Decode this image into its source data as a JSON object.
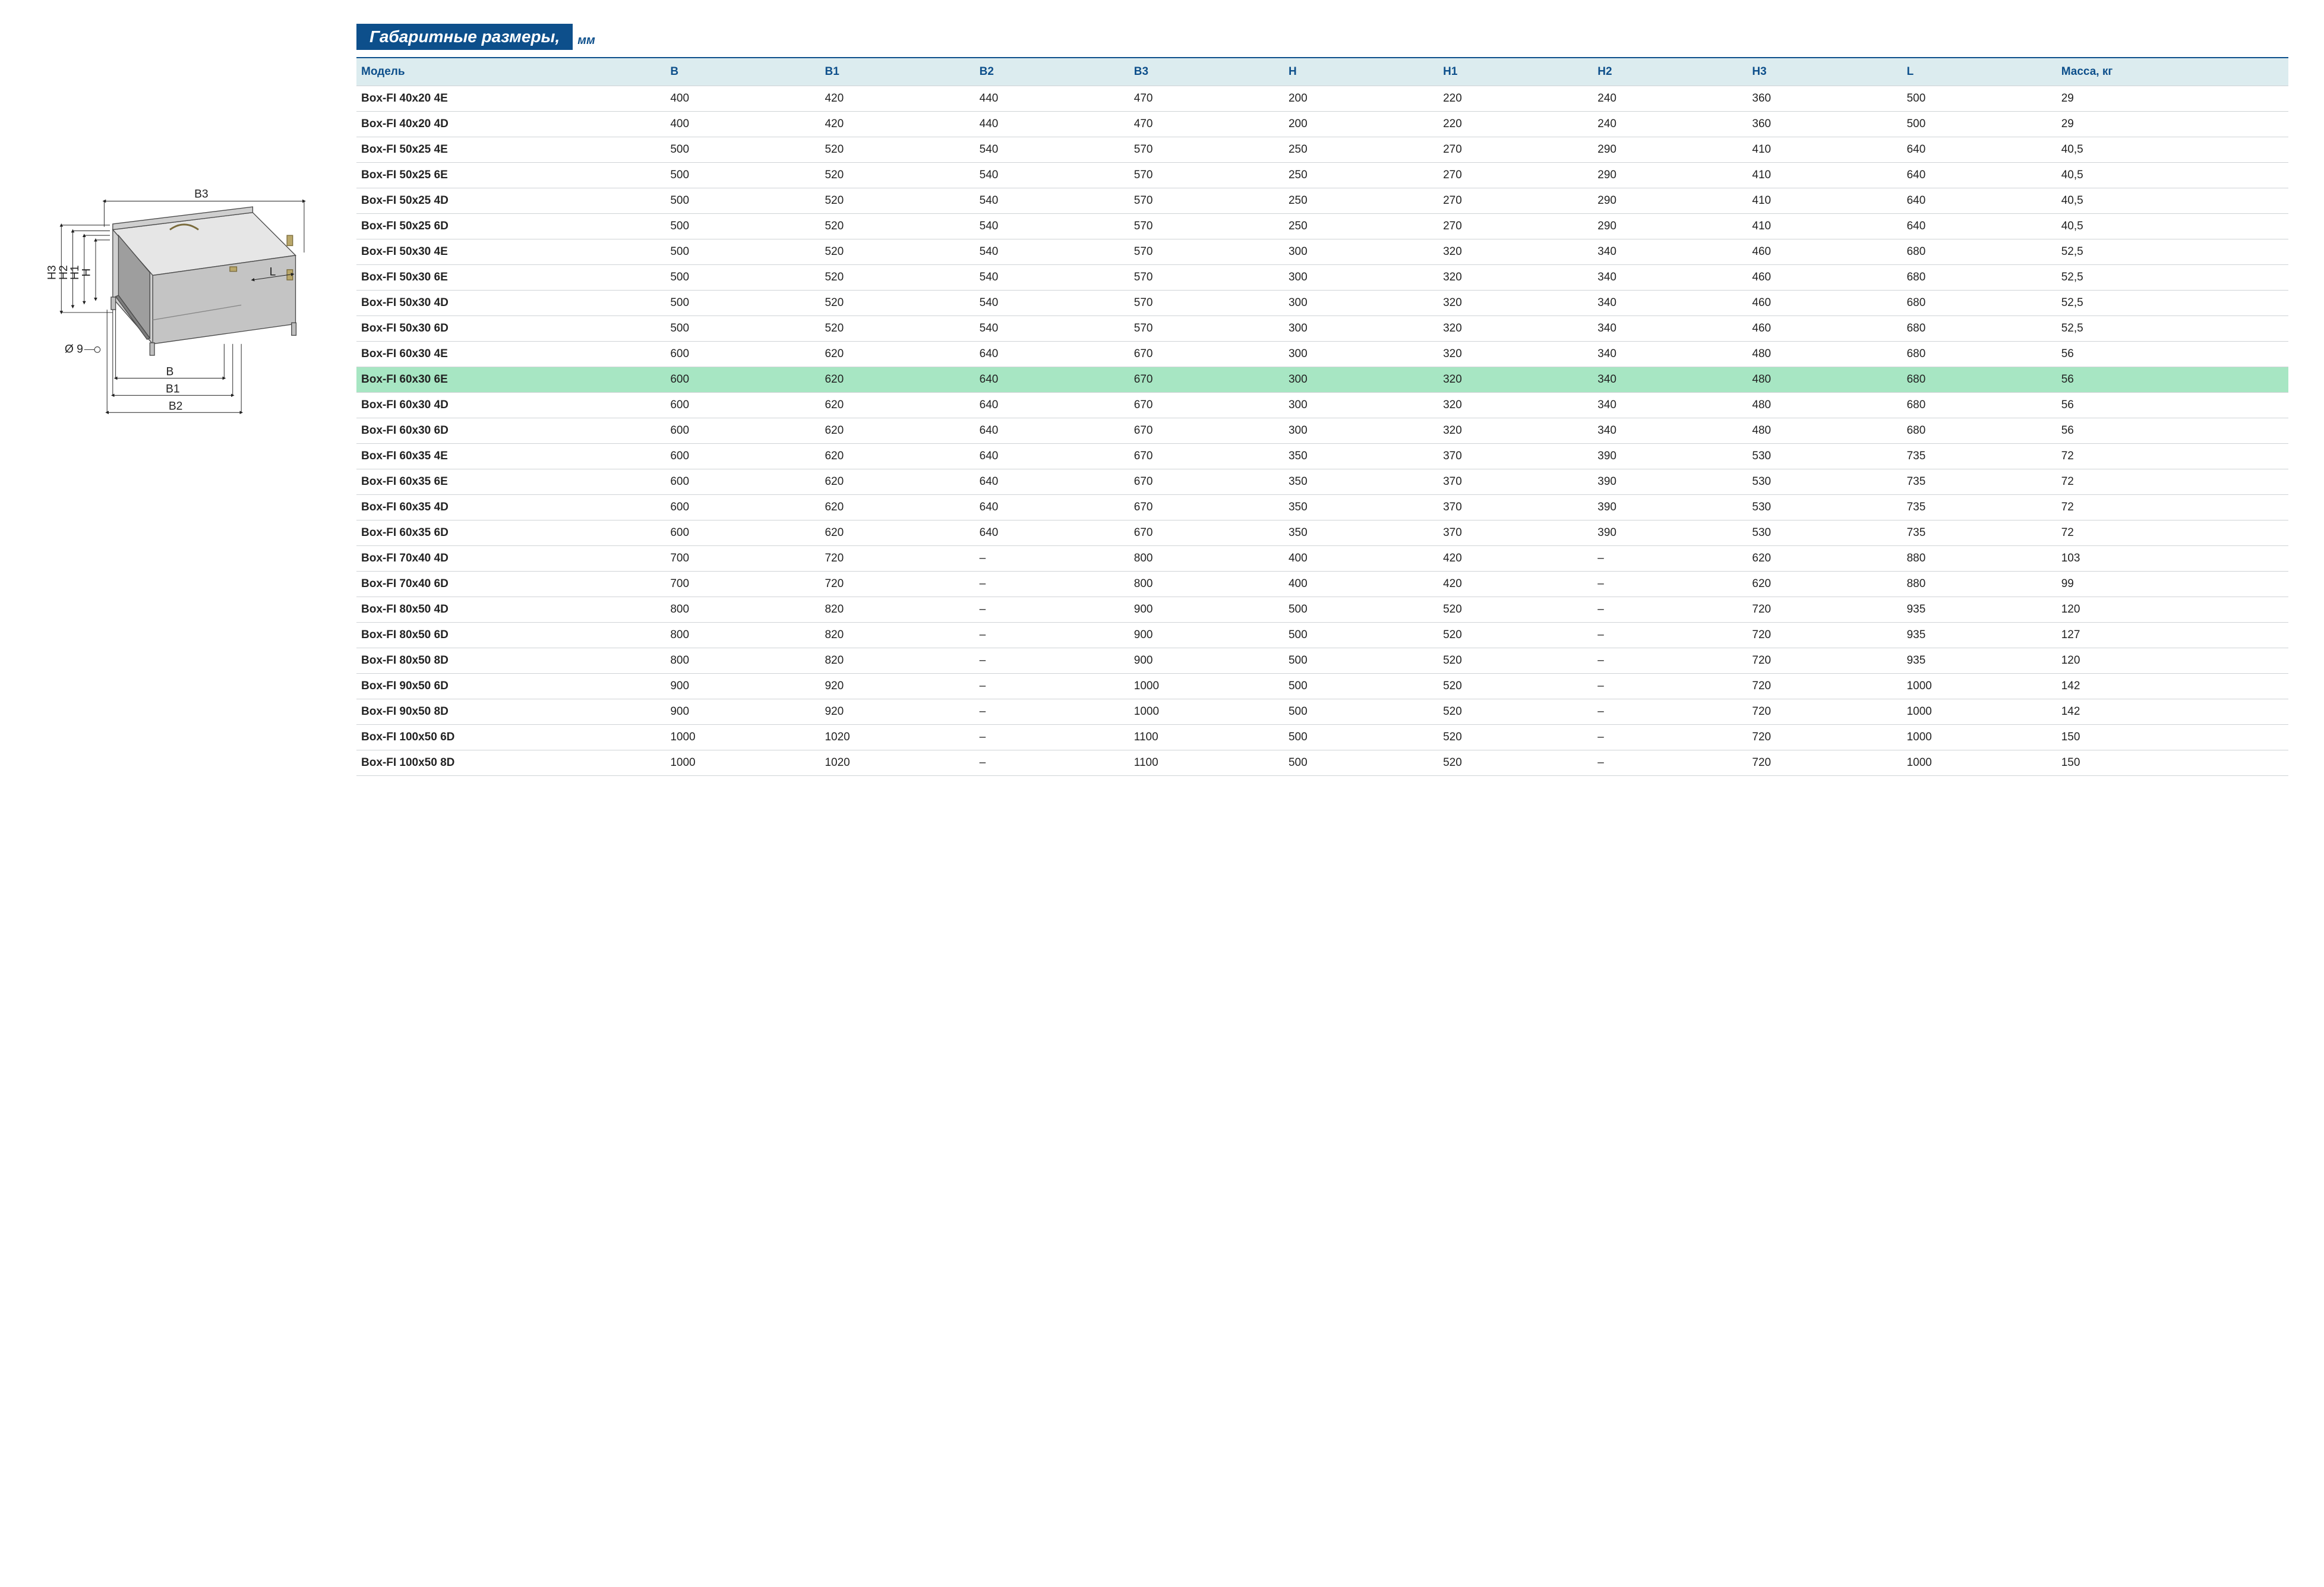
{
  "title": "Габаритные размеры,",
  "title_unit": "мм",
  "colors": {
    "accent": "#0d4f8b",
    "accent_underline": "#0d4f8b",
    "header_bg": "#dcecef",
    "header_fg": "#0d4f8b",
    "grid": "#cfd3d6",
    "highlight": "#a7e6c3",
    "body_text": "#222222",
    "background": "#ffffff",
    "box_fill": "#d9d9d9",
    "box_stroke": "#4a4a4a",
    "box_shadow": "#b0b0b0"
  },
  "typography": {
    "title_fontsize": 28,
    "title_style": "italic bold",
    "header_fontsize": 19,
    "cell_fontsize": 19,
    "diagram_label_fontsize": 20
  },
  "diagram": {
    "labels": {
      "B": "B",
      "B1": "B1",
      "B2": "B2",
      "B3": "B3",
      "H": "H",
      "H1": "H1",
      "H2": "H2",
      "H3": "H3",
      "L": "L",
      "hole": "Ø 9"
    }
  },
  "table": {
    "type": "table",
    "columns": [
      "Модель",
      "B",
      "B1",
      "B2",
      "B3",
      "H",
      "H1",
      "H2",
      "H3",
      "L",
      "Масса, кг"
    ],
    "col_widths_pct": [
      16,
      8,
      8,
      8,
      8,
      8,
      8,
      8,
      8,
      8,
      12
    ],
    "highlight_row_index": 11,
    "rows": [
      [
        "Box-FI 40x20 4E",
        "400",
        "420",
        "440",
        "470",
        "200",
        "220",
        "240",
        "360",
        "500",
        "29"
      ],
      [
        "Box-FI 40x20 4D",
        "400",
        "420",
        "440",
        "470",
        "200",
        "220",
        "240",
        "360",
        "500",
        "29"
      ],
      [
        "Box-FI 50x25 4E",
        "500",
        "520",
        "540",
        "570",
        "250",
        "270",
        "290",
        "410",
        "640",
        "40,5"
      ],
      [
        "Box-FI 50x25 6E",
        "500",
        "520",
        "540",
        "570",
        "250",
        "270",
        "290",
        "410",
        "640",
        "40,5"
      ],
      [
        "Box-FI 50x25 4D",
        "500",
        "520",
        "540",
        "570",
        "250",
        "270",
        "290",
        "410",
        "640",
        "40,5"
      ],
      [
        "Box-FI 50x25 6D",
        "500",
        "520",
        "540",
        "570",
        "250",
        "270",
        "290",
        "410",
        "640",
        "40,5"
      ],
      [
        "Box-FI 50x30 4E",
        "500",
        "520",
        "540",
        "570",
        "300",
        "320",
        "340",
        "460",
        "680",
        "52,5"
      ],
      [
        "Box-FI 50x30 6E",
        "500",
        "520",
        "540",
        "570",
        "300",
        "320",
        "340",
        "460",
        "680",
        "52,5"
      ],
      [
        "Box-FI 50x30 4D",
        "500",
        "520",
        "540",
        "570",
        "300",
        "320",
        "340",
        "460",
        "680",
        "52,5"
      ],
      [
        "Box-FI 50x30 6D",
        "500",
        "520",
        "540",
        "570",
        "300",
        "320",
        "340",
        "460",
        "680",
        "52,5"
      ],
      [
        "Box-FI 60x30 4E",
        "600",
        "620",
        "640",
        "670",
        "300",
        "320",
        "340",
        "480",
        "680",
        "56"
      ],
      [
        "Box-FI 60x30 6E",
        "600",
        "620",
        "640",
        "670",
        "300",
        "320",
        "340",
        "480",
        "680",
        "56"
      ],
      [
        "Box-FI 60x30 4D",
        "600",
        "620",
        "640",
        "670",
        "300",
        "320",
        "340",
        "480",
        "680",
        "56"
      ],
      [
        "Box-FI 60x30 6D",
        "600",
        "620",
        "640",
        "670",
        "300",
        "320",
        "340",
        "480",
        "680",
        "56"
      ],
      [
        "Box-FI 60x35 4E",
        "600",
        "620",
        "640",
        "670",
        "350",
        "370",
        "390",
        "530",
        "735",
        "72"
      ],
      [
        "Box-FI 60x35 6E",
        "600",
        "620",
        "640",
        "670",
        "350",
        "370",
        "390",
        "530",
        "735",
        "72"
      ],
      [
        "Box-FI 60x35 4D",
        "600",
        "620",
        "640",
        "670",
        "350",
        "370",
        "390",
        "530",
        "735",
        "72"
      ],
      [
        "Box-FI 60x35 6D",
        "600",
        "620",
        "640",
        "670",
        "350",
        "370",
        "390",
        "530",
        "735",
        "72"
      ],
      [
        "Box-FI 70x40 4D",
        "700",
        "720",
        "–",
        "800",
        "400",
        "420",
        "–",
        "620",
        "880",
        "103"
      ],
      [
        "Box-FI 70x40 6D",
        "700",
        "720",
        "–",
        "800",
        "400",
        "420",
        "–",
        "620",
        "880",
        "99"
      ],
      [
        "Box-FI 80x50 4D",
        "800",
        "820",
        "–",
        "900",
        "500",
        "520",
        "–",
        "720",
        "935",
        "120"
      ],
      [
        "Box-FI 80x50 6D",
        "800",
        "820",
        "–",
        "900",
        "500",
        "520",
        "–",
        "720",
        "935",
        "127"
      ],
      [
        "Box-FI 80x50 8D",
        "800",
        "820",
        "–",
        "900",
        "500",
        "520",
        "–",
        "720",
        "935",
        "120"
      ],
      [
        "Box-FI 90x50 6D",
        "900",
        "920",
        "–",
        "1000",
        "500",
        "520",
        "–",
        "720",
        "1000",
        "142"
      ],
      [
        "Box-FI 90x50 8D",
        "900",
        "920",
        "–",
        "1000",
        "500",
        "520",
        "–",
        "720",
        "1000",
        "142"
      ],
      [
        "Box-FI 100x50 6D",
        "1000",
        "1020",
        "–",
        "1100",
        "500",
        "520",
        "–",
        "720",
        "1000",
        "150"
      ],
      [
        "Box-FI 100x50 8D",
        "1000",
        "1020",
        "–",
        "1100",
        "500",
        "520",
        "–",
        "720",
        "1000",
        "150"
      ]
    ]
  }
}
